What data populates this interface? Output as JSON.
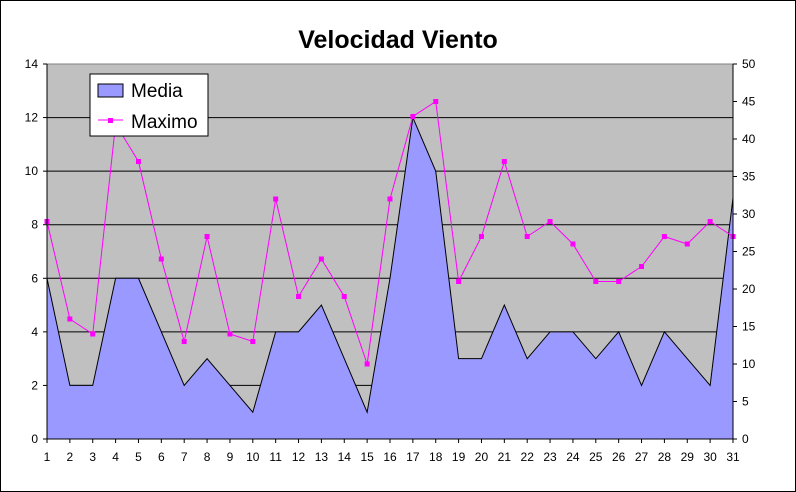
{
  "chart_data": {
    "type": "area",
    "title": "Velocidad Viento",
    "categories": [
      "1",
      "2",
      "3",
      "4",
      "5",
      "6",
      "7",
      "8",
      "9",
      "10",
      "11",
      "12",
      "13",
      "14",
      "15",
      "16",
      "17",
      "18",
      "19",
      "20",
      "21",
      "22",
      "23",
      "24",
      "25",
      "26",
      "27",
      "28",
      "29",
      "30",
      "31"
    ],
    "series": [
      {
        "name": "Media",
        "type": "area",
        "axis": "left",
        "color": "#9999ff",
        "values": [
          6,
          2,
          2,
          6,
          6,
          4,
          2,
          3,
          2,
          1,
          4,
          4,
          5,
          3,
          1,
          6,
          12,
          10,
          3,
          3,
          5,
          3,
          4,
          4,
          3,
          4,
          2,
          4,
          3,
          2,
          9
        ]
      },
      {
        "name": "Maximo",
        "type": "line",
        "axis": "right",
        "color": "#ff00ff",
        "values": [
          29,
          16,
          14,
          42,
          37,
          24,
          13,
          27,
          14,
          13,
          32,
          19,
          24,
          19,
          10,
          32,
          43,
          45,
          21,
          27,
          37,
          27,
          29,
          26,
          21,
          21,
          23,
          27,
          26,
          29,
          27
        ]
      }
    ],
    "y_left": {
      "min": 0,
      "max": 14,
      "ticks": [
        0,
        2,
        4,
        6,
        8,
        10,
        12,
        14
      ]
    },
    "y_right": {
      "min": 0,
      "max": 50,
      "ticks": [
        0,
        5,
        10,
        15,
        20,
        25,
        30,
        35,
        40,
        45,
        50
      ]
    },
    "plot_background": "#c0c0c0",
    "gridlines": true,
    "legend_position": "top-left"
  }
}
